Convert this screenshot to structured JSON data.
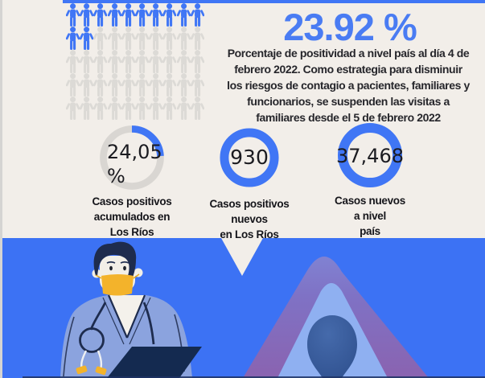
{
  "theme": {
    "bg_beige": "#f2eee9",
    "edge_gray": "#d5d4d2",
    "accent_blue": "#4076f5",
    "accent_text_blue": "#4a7cf3",
    "muted_gray": "#dcdad6",
    "ring_gray": "#d9d6d2",
    "ink": "#26262b",
    "bottom_blue": "#3c72f4",
    "purple_mountain": "#8c66b2",
    "inner_triangle": "#8fb0f1",
    "teardrop_blue": "#35589a",
    "mask_yellow": "#f3b32b",
    "scrubs_periwinkle": "#8ba3de",
    "navy": "#1e2c4e"
  },
  "pictogram": {
    "icon": "person-icon",
    "rows": 5,
    "cols": 10,
    "total": 50,
    "filled": 12
  },
  "headline": {
    "value": "23.92 %",
    "description_lines": [
      "Porcentaje de positividad a nivel país al día 4 de",
      "febrero 2022. Como estrategia para disminuir",
      "los riesgos de contagio a pacientes, familiares y",
      "funcionarios, se suspenden las visitas a",
      "familiares desde el 5 de febrero 2022"
    ]
  },
  "stats": [
    {
      "ring": "partial",
      "percent_value": 24.05,
      "value_lines": [
        "24,05",
        "%"
      ],
      "label_lines": [
        "Casos positivos",
        "acumulados en",
        "Los Ríos"
      ]
    },
    {
      "ring": "full",
      "value_lines": [
        "930"
      ],
      "label_lines": [
        "Casos positivos",
        "nuevos",
        "en Los Ríos"
      ]
    },
    {
      "ring": "full",
      "value_lines": [
        "37,468"
      ],
      "label_lines": [
        "Casos nuevos",
        "a nivel",
        "país"
      ]
    }
  ],
  "illustrations": {
    "doctor": "doctor-with-face-mask-stethoscope-and-clipboard",
    "mountain": "abstract-mountain-with-teardrop"
  }
}
